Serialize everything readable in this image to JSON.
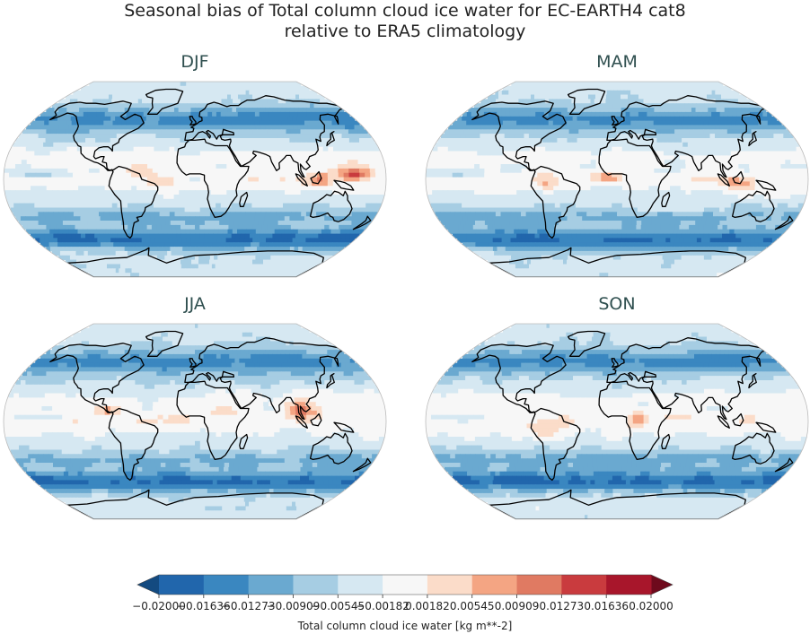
{
  "chart_data": {
    "type": "heatmap",
    "title_line1": "Seasonal bias of Total column cloud ice water for EC-EARTH4 cat8",
    "title_line2": "relative to ERA5 climatology",
    "projection": "Robinson",
    "panels": [
      {
        "name": "DJF",
        "tropical_band": "mixed",
        "strong_positive": [
          "Pacific warm pool",
          "Maritime Continent"
        ]
      },
      {
        "name": "MAM",
        "tropical_band": "mixed",
        "strong_positive": [
          "equatorial Atlantic"
        ]
      },
      {
        "name": "JJA",
        "tropical_band": "positive",
        "strong_positive": [
          "Bay of Bengal",
          "South China Sea"
        ]
      },
      {
        "name": "SON",
        "tropical_band": "mixed",
        "strong_positive": [
          "central Africa"
        ]
      }
    ],
    "colorbar": {
      "label": "Total column cloud ice water [kg m**-2]",
      "levels": [
        -0.02,
        -0.01636,
        -0.01273,
        -0.00909,
        -0.00545,
        -0.00182,
        0.00182,
        0.00545,
        0.00909,
        0.01273,
        0.01636,
        0.02
      ],
      "tick_labels": [
        "−0.02000",
        "−0.01636",
        "−0.01273",
        "−0.00909",
        "−0.00545",
        "−0.00182",
        "0.00182",
        "0.00545",
        "0.00909",
        "0.01273",
        "0.01636",
        "0.02000"
      ],
      "colors": [
        "#2166ac",
        "#3a87c0",
        "#6aa9d0",
        "#a6cde3",
        "#d6e8f2",
        "#f7f7f7",
        "#fbdcc9",
        "#f4a583",
        "#e07a62",
        "#c93b3e",
        "#a8162b"
      ],
      "extend": "both",
      "under_color": "#134a80",
      "over_color": "#6e0a1c"
    }
  }
}
